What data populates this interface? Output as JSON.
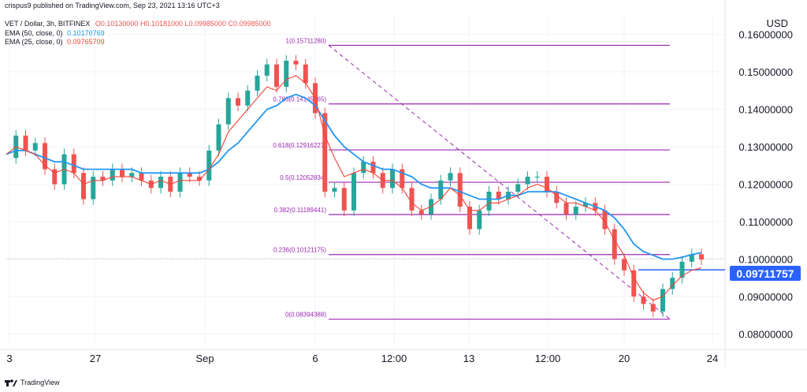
{
  "header": {
    "publisher": "crispus9 published on TradingView.com, Sep 23, 2021 13:16 UTC+3",
    "symbol_line": "VET / Dollar, 3h, BITFINEX",
    "ohlc": "O0.10130000  H0.10181000  L0.09985000  C0.09985000",
    "ema50_label": "EMA (50, close, 0)",
    "ema50_value": "0.10170769",
    "ema25_label": "EMA (25, close, 0)",
    "ema25_value": "0.09765709"
  },
  "footer": {
    "brand": "TradingView"
  },
  "price_tag": "0.09711757",
  "colors": {
    "up": "#26a69a",
    "down": "#ef5350",
    "ema50": "#2196f3",
    "ema25": "#f44336",
    "fib": "#9c27b0",
    "tag": "#2962ff"
  },
  "chart_data": {
    "type": "candlestick",
    "currency_label": "USD",
    "y_ticks": [
      "0.16000000",
      "0.15000000",
      "0.14000000",
      "0.13000000",
      "0.12000000",
      "0.11000000",
      "0.10000000",
      "0.09000000",
      "0.08000000"
    ],
    "y_tick_values": [
      0.16,
      0.15,
      0.14,
      0.13,
      0.12,
      0.11,
      0.1,
      0.09,
      0.08
    ],
    "ylim": [
      0.0765,
      0.165
    ],
    "x_ticks": [
      "3",
      "27",
      "Sep",
      "6",
      "12:00",
      "13",
      "12:00",
      "20",
      "24"
    ],
    "current_price": 0.09711757,
    "fib_levels": [
      {
        "label": "1(0.15711280)",
        "value": 0.1571128
      },
      {
        "label": "0.786(0.14145465)",
        "value": 0.14145465
      },
      {
        "label": "0.618(0.12916227)",
        "value": 0.12916227
      },
      {
        "label": "0.5(0.12052834)",
        "value": 0.12052834
      },
      {
        "label": "0.382(0.11189441)",
        "value": 0.11189441
      },
      {
        "label": "0.236(0.10121175)",
        "value": 0.10121175
      },
      {
        "label": "0(0.08394388)",
        "value": 0.08394388
      }
    ],
    "trendline": {
      "from": [
        0,
        0.1571128
      ],
      "to": [
        1,
        0.08394388
      ],
      "style": "dashed"
    },
    "price_path": [
      0.127,
      0.133,
      0.129,
      0.131,
      0.124,
      0.12,
      0.128,
      0.123,
      0.116,
      0.122,
      0.121,
      0.124,
      0.122,
      0.123,
      0.121,
      0.119,
      0.122,
      0.118,
      0.123,
      0.122,
      0.121,
      0.129,
      0.136,
      0.143,
      0.141,
      0.145,
      0.149,
      0.152,
      0.146,
      0.153,
      0.152,
      0.147,
      0.139,
      0.118,
      0.119,
      0.113,
      0.123,
      0.126,
      0.123,
      0.119,
      0.124,
      0.119,
      0.113,
      0.112,
      0.116,
      0.121,
      0.123,
      0.114,
      0.108,
      0.113,
      0.118,
      0.116,
      0.118,
      0.12,
      0.122,
      0.122,
      0.118,
      0.115,
      0.112,
      0.114,
      0.115,
      0.113,
      0.108,
      0.1,
      0.097,
      0.09,
      0.088,
      0.086,
      0.092,
      0.095,
      0.0993,
      0.1013,
      0.0999
    ],
    "ema25": [
      0.128,
      0.13,
      0.129,
      0.128,
      0.125,
      0.123,
      0.124,
      0.123,
      0.12,
      0.121,
      0.121,
      0.122,
      0.122,
      0.122,
      0.121,
      0.12,
      0.121,
      0.12,
      0.121,
      0.121,
      0.121,
      0.124,
      0.128,
      0.134,
      0.137,
      0.14,
      0.143,
      0.146,
      0.145,
      0.148,
      0.149,
      0.147,
      0.143,
      0.133,
      0.127,
      0.122,
      0.123,
      0.124,
      0.123,
      0.121,
      0.121,
      0.119,
      0.115,
      0.113,
      0.114,
      0.116,
      0.119,
      0.117,
      0.113,
      0.113,
      0.115,
      0.115,
      0.116,
      0.117,
      0.119,
      0.12,
      0.119,
      0.117,
      0.115,
      0.115,
      0.114,
      0.113,
      0.11,
      0.105,
      0.101,
      0.095,
      0.091,
      0.089,
      0.09,
      0.093,
      0.0955,
      0.097,
      0.0977
    ],
    "ema50": [
      0.128,
      0.129,
      0.129,
      0.128,
      0.127,
      0.126,
      0.126,
      0.125,
      0.124,
      0.124,
      0.124,
      0.124,
      0.124,
      0.124,
      0.123,
      0.123,
      0.123,
      0.123,
      0.123,
      0.123,
      0.123,
      0.124,
      0.126,
      0.129,
      0.131,
      0.134,
      0.137,
      0.14,
      0.141,
      0.143,
      0.144,
      0.143,
      0.141,
      0.137,
      0.133,
      0.13,
      0.128,
      0.126,
      0.125,
      0.124,
      0.124,
      0.123,
      0.122,
      0.12,
      0.119,
      0.119,
      0.119,
      0.118,
      0.117,
      0.116,
      0.116,
      0.116,
      0.117,
      0.117,
      0.118,
      0.118,
      0.118,
      0.118,
      0.117,
      0.116,
      0.115,
      0.114,
      0.113,
      0.111,
      0.108,
      0.104,
      0.102,
      0.101,
      0.1,
      0.1,
      0.1005,
      0.1012,
      0.1017
    ]
  }
}
